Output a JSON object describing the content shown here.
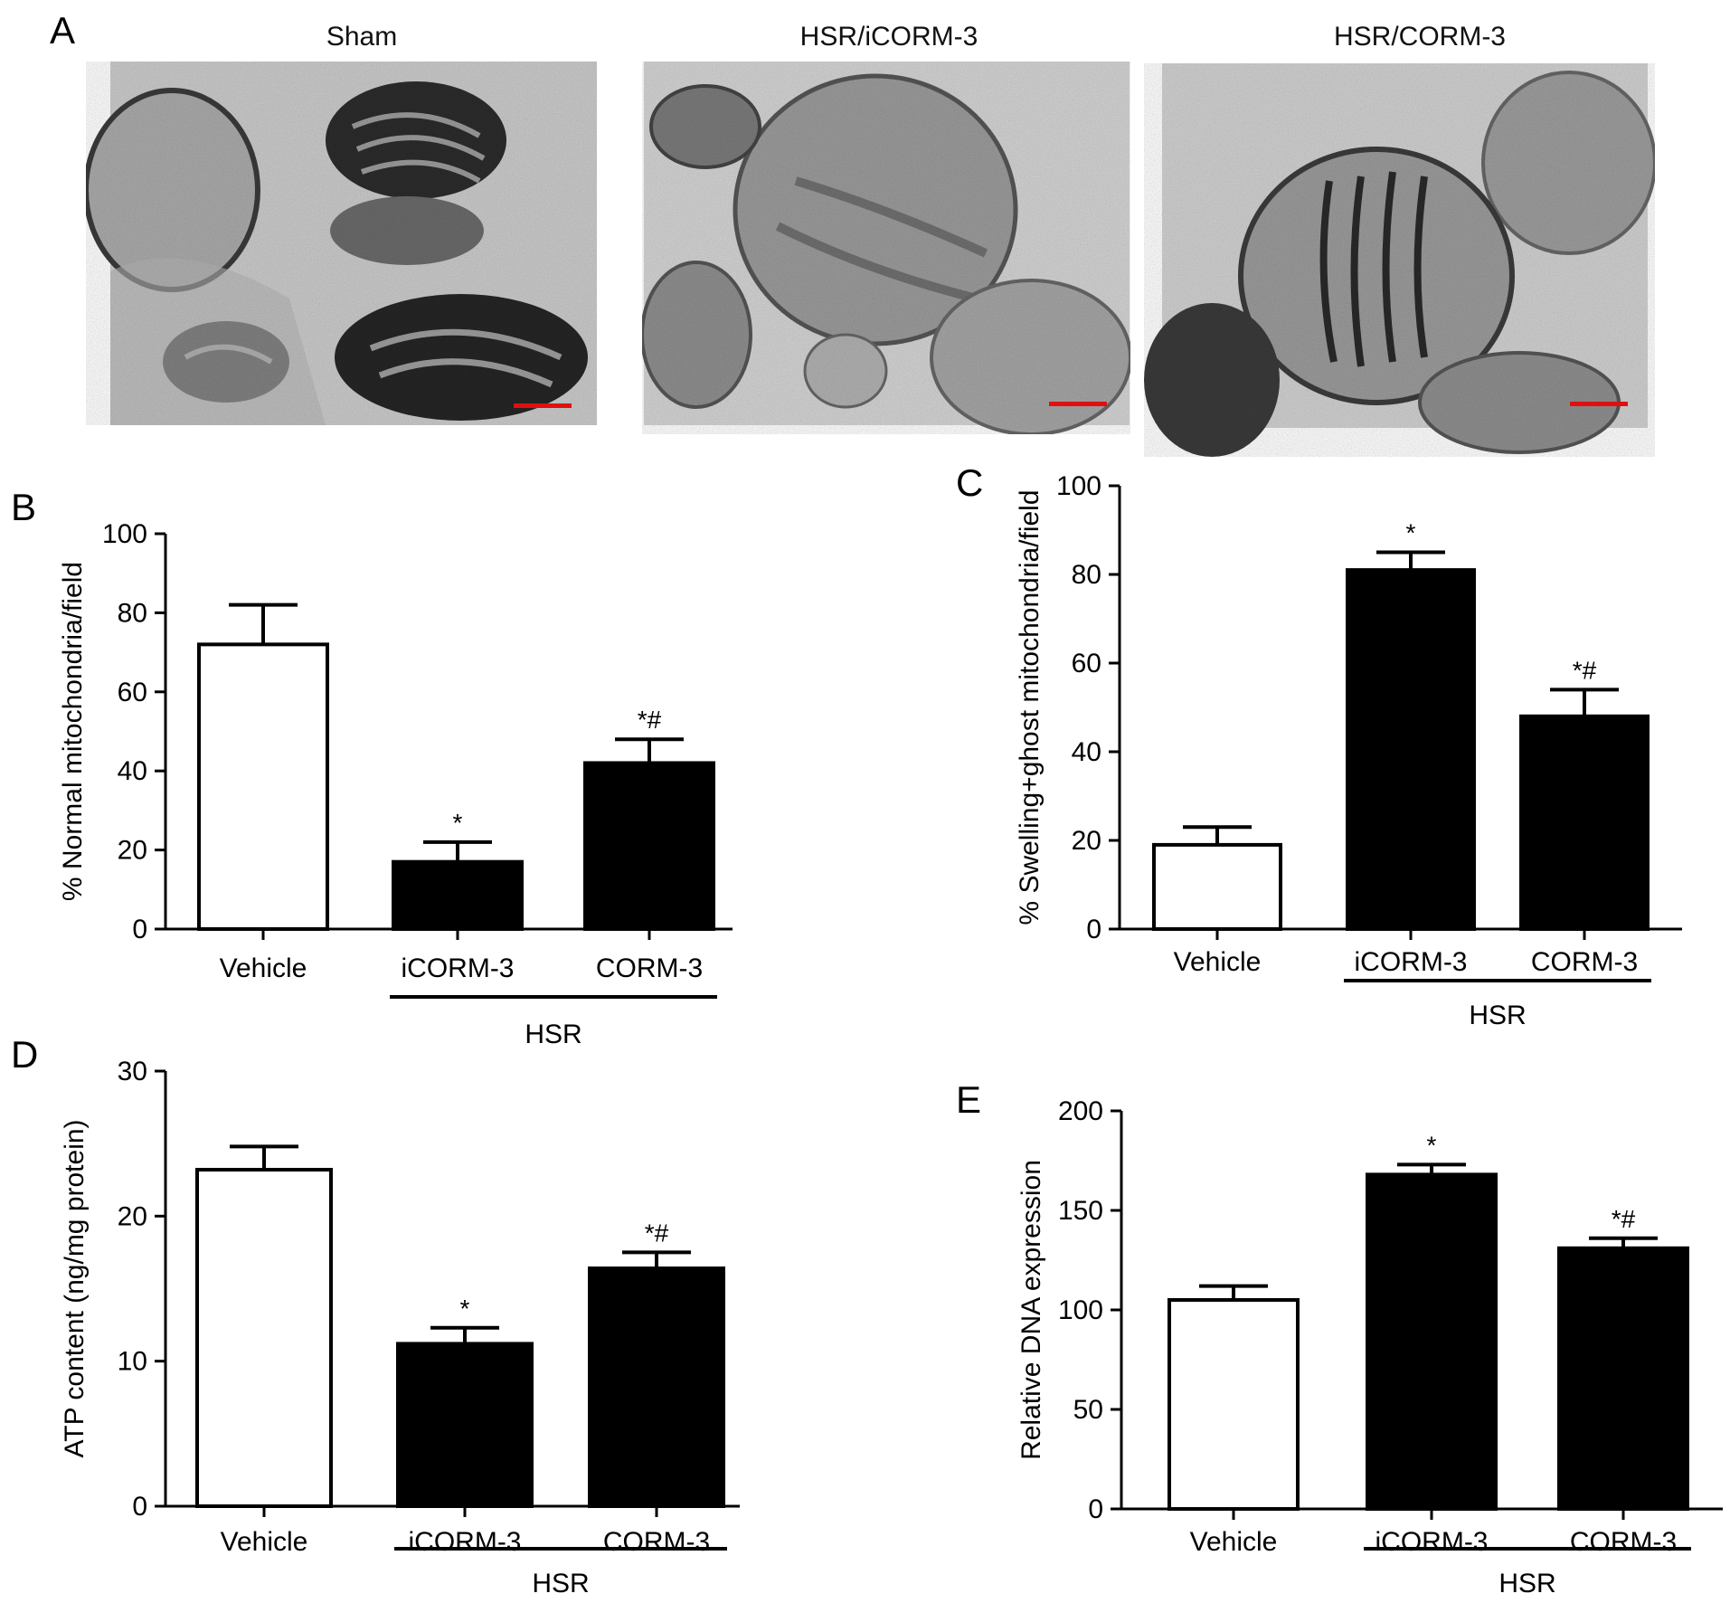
{
  "panel_a": {
    "letter": "A",
    "images": [
      {
        "title": "Sham",
        "variant": "sham"
      },
      {
        "title": "HSR/iCORM-3",
        "variant": "icorm"
      },
      {
        "title": "HSR/CORM-3",
        "variant": "corm"
      }
    ],
    "scale_bar_color": "#e01010"
  },
  "colors": {
    "vehicle": "#ffffff",
    "hsr": "#000000",
    "micrograph_bg": "#bdbdbd"
  },
  "chart_data": [
    {
      "panel": "B",
      "type": "bar",
      "ylabel": "% Normal mitochondria/field",
      "ylim": [
        0,
        100
      ],
      "yticks": [
        0,
        20,
        40,
        60,
        80,
        100
      ],
      "categories": [
        "Vehicle",
        "iCORM-3",
        "CORM-3"
      ],
      "values": [
        72,
        17,
        42
      ],
      "errors": [
        10,
        5,
        6
      ],
      "significance": [
        "",
        "*",
        "*#"
      ],
      "group_label": "HSR",
      "group_members": [
        "iCORM-3",
        "CORM-3"
      ]
    },
    {
      "panel": "C",
      "type": "bar",
      "ylabel": "% Swelling+ghost mitochondria/field",
      "ylim": [
        0,
        100
      ],
      "yticks": [
        0,
        20,
        40,
        60,
        80,
        100
      ],
      "categories": [
        "Vehicle",
        "iCORM-3",
        "CORM-3"
      ],
      "values": [
        19,
        81,
        48
      ],
      "errors": [
        4,
        4,
        6
      ],
      "significance": [
        "",
        "*",
        "*#"
      ],
      "group_label": "HSR",
      "group_members": [
        "iCORM-3",
        "CORM-3"
      ]
    },
    {
      "panel": "D",
      "type": "bar",
      "ylabel": "ATP content (ng/mg protein)",
      "ylim": [
        0,
        30
      ],
      "yticks": [
        0,
        10,
        20,
        30
      ],
      "categories": [
        "Vehicle",
        "iCORM-3",
        "CORM-3"
      ],
      "values": [
        23.2,
        11.2,
        16.4
      ],
      "errors": [
        1.6,
        1.1,
        1.1
      ],
      "significance": [
        "",
        "*",
        "*#"
      ],
      "group_label": "HSR",
      "group_members": [
        "iCORM-3",
        "CORM-3"
      ]
    },
    {
      "panel": "E",
      "type": "bar",
      "ylabel": "Relative DNA expression",
      "ylim": [
        0,
        200
      ],
      "yticks": [
        0,
        50,
        100,
        150,
        200
      ],
      "categories": [
        "Vehicle",
        "iCORM-3",
        "CORM-3"
      ],
      "values": [
        105,
        168,
        131
      ],
      "errors": [
        7,
        5,
        5
      ],
      "significance": [
        "",
        "*",
        "*#"
      ],
      "group_label": "HSR",
      "group_members": [
        "iCORM-3",
        "CORM-3"
      ]
    }
  ]
}
